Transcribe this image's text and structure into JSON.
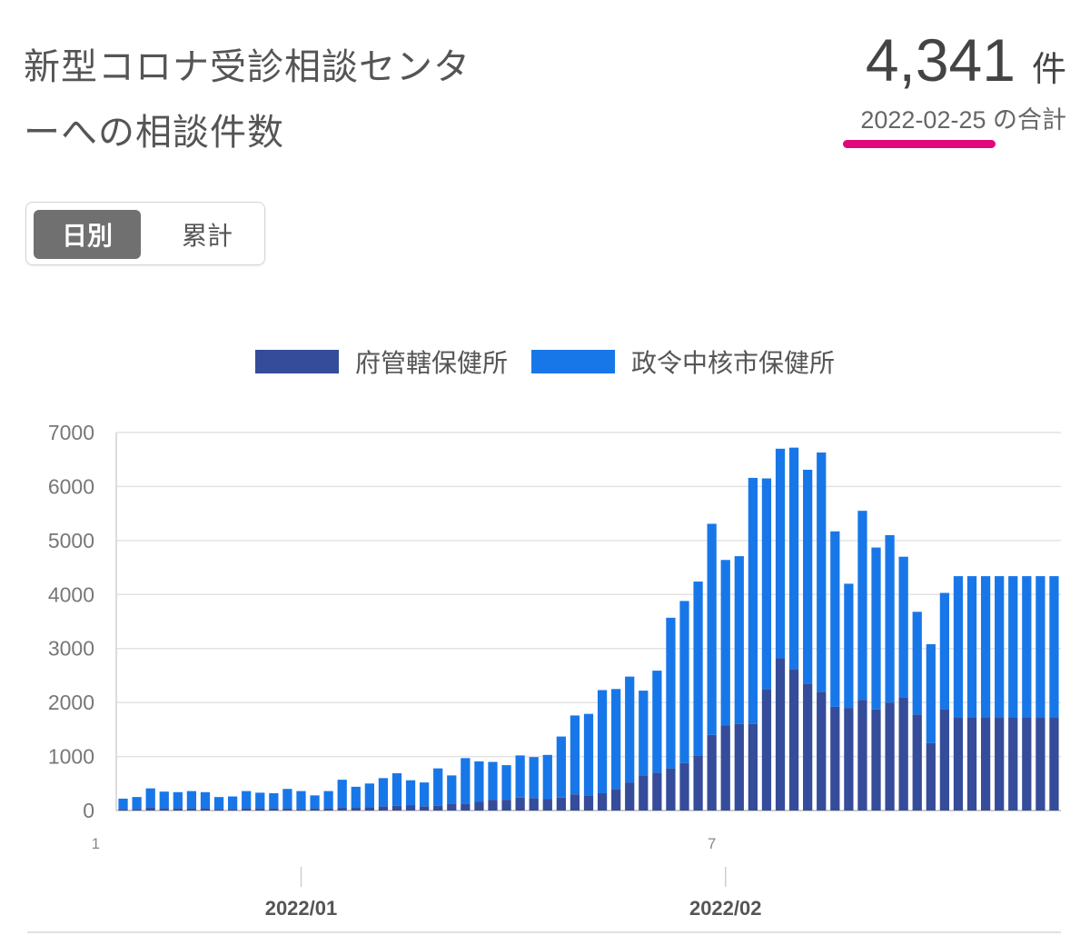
{
  "header": {
    "title_line1": "新型コロナ受診相談センタ",
    "title_line2": "ーへの相談件数",
    "total_value": "4,341",
    "total_unit": "件",
    "total_date": "2022-02-25 の合計"
  },
  "toggle": {
    "daily": "日別",
    "cumulative": "累計"
  },
  "colors": {
    "series1": "#354c9a",
    "series2": "#1877e8",
    "highlight": "#e0087a"
  },
  "chart_data": {
    "type": "bar",
    "stacked": true,
    "categories": [
      "2021-12-19",
      "2021-12-20",
      "2021-12-21",
      "2021-12-22",
      "2021-12-23",
      "2021-12-24",
      "2021-12-25",
      "2021-12-26",
      "2021-12-27",
      "2021-12-28",
      "2021-12-29",
      "2021-12-30",
      "2021-12-31",
      "2022-01-01",
      "2022-01-02",
      "2022-01-03",
      "2022-01-04",
      "2022-01-05",
      "2022-01-06",
      "2022-01-07",
      "2022-01-08",
      "2022-01-09",
      "2022-01-10",
      "2022-01-11",
      "2022-01-12",
      "2022-01-13",
      "2022-01-14",
      "2022-01-15",
      "2022-01-16",
      "2022-01-17",
      "2022-01-18",
      "2022-01-19",
      "2022-01-20",
      "2022-01-21",
      "2022-01-22",
      "2022-01-23",
      "2022-01-24",
      "2022-01-25",
      "2022-01-26",
      "2022-01-27",
      "2022-01-28",
      "2022-01-29",
      "2022-01-30",
      "2022-01-31",
      "2022-02-01",
      "2022-02-02",
      "2022-02-03",
      "2022-02-04",
      "2022-02-05",
      "2022-02-06",
      "2022-02-07",
      "2022-02-08",
      "2022-02-09",
      "2022-02-10",
      "2022-02-11",
      "2022-02-12",
      "2022-02-13",
      "2022-02-14",
      "2022-02-15",
      "2022-02-16",
      "2022-02-17",
      "2022-02-18",
      "2022-02-19",
      "2022-02-20",
      "2022-02-21",
      "2022-02-22",
      "2022-02-23",
      "2022-02-24",
      "2022-02-25"
    ],
    "series": [
      {
        "name": "府管轄保健所",
        "values": [
          30,
          30,
          50,
          40,
          40,
          40,
          40,
          30,
          30,
          40,
          40,
          40,
          40,
          30,
          40,
          40,
          50,
          50,
          60,
          80,
          90,
          100,
          80,
          90,
          130,
          130,
          160,
          200,
          200,
          240,
          230,
          210,
          240,
          300,
          280,
          320,
          400,
          520,
          650,
          700,
          780,
          880,
          1020,
          1400,
          1580,
          1600,
          1600,
          2250,
          2820,
          2620,
          2350,
          2200,
          1920,
          1900,
          2050,
          1870,
          2000,
          2100,
          1780,
          1250,
          1880,
          1730,
          1730,
          1730,
          1730,
          1730,
          1730,
          1730,
          1730
        ]
      },
      {
        "name": "政令中核市保健所",
        "values": [
          190,
          220,
          360,
          310,
          300,
          320,
          300,
          220,
          230,
          320,
          290,
          280,
          360,
          330,
          240,
          320,
          520,
          390,
          440,
          520,
          600,
          460,
          440,
          690,
          520,
          840,
          750,
          700,
          640,
          780,
          760,
          820,
          1130,
          1460,
          1510,
          1910,
          1850,
          1960,
          1570,
          1890,
          2790,
          3000,
          3220,
          3910,
          3060,
          3110,
          4560,
          3900,
          3880,
          4100,
          3960,
          4430,
          3250,
          2300,
          3500,
          3000,
          3100,
          2600,
          1900,
          1830,
          2150,
          2610,
          2610,
          2610,
          2610,
          2610,
          2610,
          2610,
          2610
        ]
      }
    ],
    "yticks": [
      0,
      1000,
      2000,
      3000,
      4000,
      5000,
      6000,
      7000
    ],
    "ylim": [
      0,
      7000
    ],
    "x_month_labels": [
      {
        "label": "2022/01",
        "date": "2022-01-01"
      },
      {
        "label": "2022/02",
        "date": "2022-02-01"
      }
    ],
    "x_small_labels": [
      {
        "label": "1",
        "date": "2021-12-17"
      },
      {
        "label": "7",
        "date": "2022-01-31"
      }
    ],
    "grid": true,
    "legend_position": "top-center"
  }
}
